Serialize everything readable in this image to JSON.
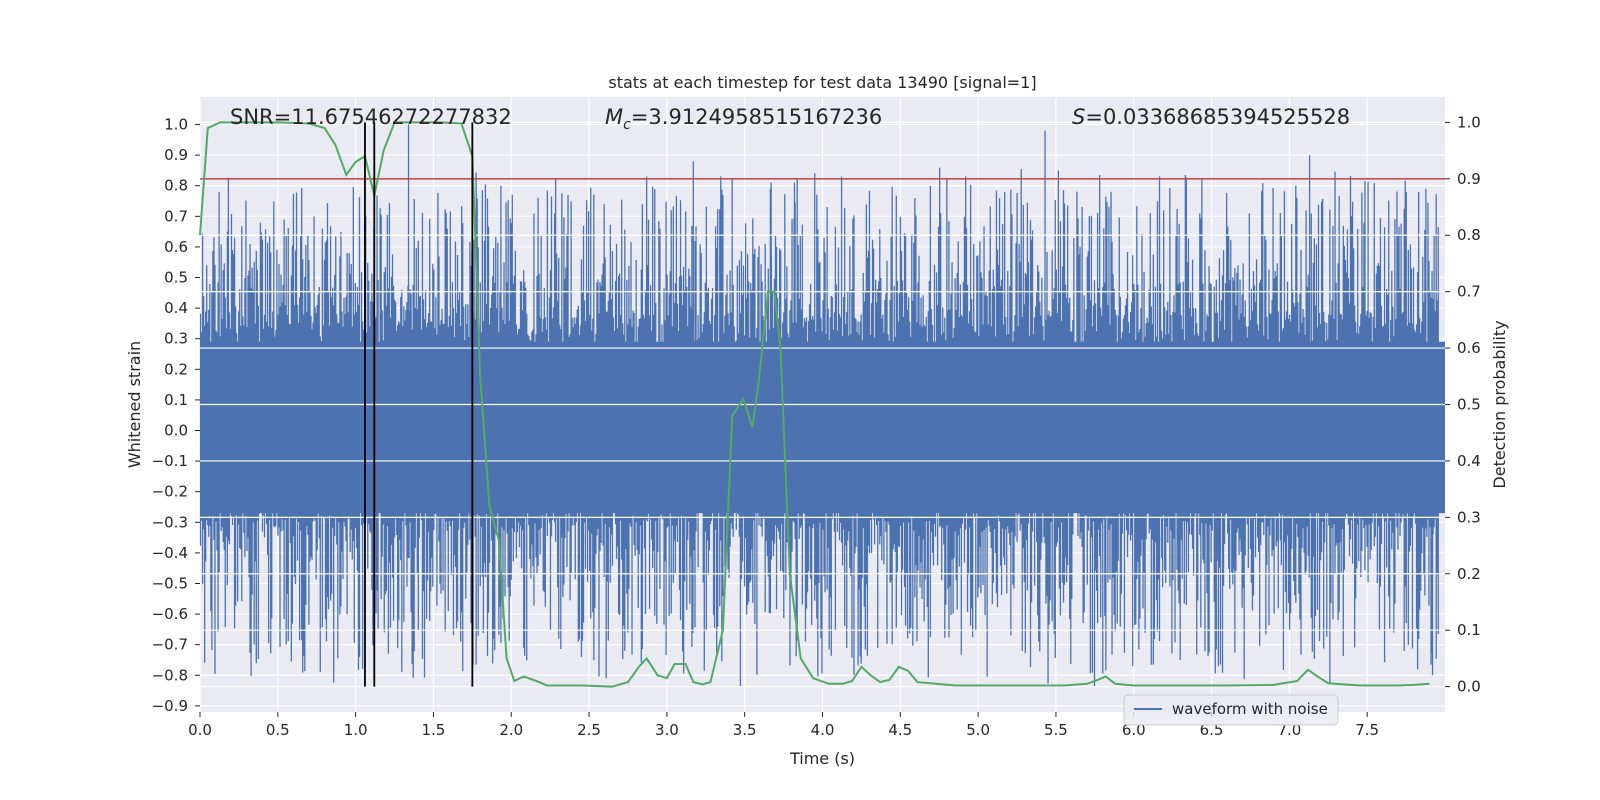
{
  "chart_data": {
    "type": "line",
    "title": "stats at each timestep for test data 13490 [signal=1]",
    "xlabel": "Time (s)",
    "ylabel": "Whitened strain",
    "y2label": "Detection probability",
    "xlim": [
      0.0,
      8.0
    ],
    "ylim": [
      -0.92,
      1.09
    ],
    "y2lim": [
      -0.045,
      1.045
    ],
    "x_ticks": [
      "0.0",
      "0.5",
      "1.0",
      "1.5",
      "2.0",
      "2.5",
      "3.0",
      "3.5",
      "4.0",
      "4.5",
      "5.0",
      "5.5",
      "6.0",
      "6.5",
      "7.0",
      "7.5"
    ],
    "y_ticks": [
      "1.0",
      "0.9",
      "0.8",
      "0.7",
      "0.6",
      "0.5",
      "0.4",
      "0.3",
      "0.2",
      "0.1",
      "0.0",
      "−0.1",
      "−0.2",
      "−0.3",
      "−0.4",
      "−0.5",
      "−0.6",
      "−0.7",
      "−0.8",
      "−0.9"
    ],
    "y2_ticks": [
      "1.0",
      "0.9",
      "0.8",
      "0.7",
      "0.6",
      "0.5",
      "0.4",
      "0.3",
      "0.2",
      "0.1",
      "0.0"
    ],
    "grid": true,
    "legend": {
      "position": "lower-right",
      "entries": [
        "waveform with noise"
      ]
    },
    "annotations": {
      "snr": "SNR=11.67546272277832",
      "mc_symbol": "M",
      "mc_sub": "c",
      "mc_value": "=3.9124958515167236",
      "s_symbol": "S",
      "s_value": "=0.03368685394525528"
    },
    "threshold": {
      "value": 0.9,
      "axis": "y2",
      "color": "#c44e52"
    },
    "vertical_markers": [
      1.06,
      1.12,
      1.75
    ],
    "noise_band": {
      "median_low": -0.32,
      "median_high": 0.39,
      "peak_high": 0.88,
      "peak_low": -0.85,
      "n_samples": 1200
    },
    "spikes": [
      {
        "x": 1.34,
        "y": 1.0
      },
      {
        "x": 2.87,
        "y": 0.83
      },
      {
        "x": 3.17,
        "y": 0.88
      },
      {
        "x": 3.67,
        "y": 0.81
      },
      {
        "x": 3.82,
        "y": 0.81
      },
      {
        "x": 4.92,
        "y": 0.83
      },
      {
        "x": 5.43,
        "y": 0.98
      },
      {
        "x": 7.13,
        "y": 0.9
      },
      {
        "x": 2.61,
        "y": -0.81
      },
      {
        "x": 7.92,
        "y": -0.8
      }
    ],
    "series": [
      {
        "name": "Detection probability",
        "axis": "y2",
        "color": "#55a868",
        "points": [
          [
            0.0,
            0.8
          ],
          [
            0.05,
            0.99
          ],
          [
            0.13,
            1.0
          ],
          [
            0.3,
            1.0
          ],
          [
            0.5,
            1.0
          ],
          [
            0.7,
            0.998
          ],
          [
            0.8,
            0.99
          ],
          [
            0.87,
            0.96
          ],
          [
            0.94,
            0.907
          ],
          [
            1.0,
            0.93
          ],
          [
            1.06,
            0.94
          ],
          [
            1.12,
            0.87
          ],
          [
            1.18,
            0.95
          ],
          [
            1.25,
            1.0
          ],
          [
            1.4,
            1.0
          ],
          [
            1.55,
            1.0
          ],
          [
            1.68,
            0.998
          ],
          [
            1.75,
            0.94
          ],
          [
            1.8,
            0.55
          ],
          [
            1.86,
            0.32
          ],
          [
            1.92,
            0.26
          ],
          [
            1.97,
            0.05
          ],
          [
            2.02,
            0.01
          ],
          [
            2.08,
            0.018
          ],
          [
            2.16,
            0.01
          ],
          [
            2.23,
            0.002
          ],
          [
            2.35,
            0.002
          ],
          [
            2.45,
            0.002
          ],
          [
            2.65,
            0.0
          ],
          [
            2.75,
            0.008
          ],
          [
            2.82,
            0.035
          ],
          [
            2.87,
            0.05
          ],
          [
            2.94,
            0.02
          ],
          [
            3.0,
            0.015
          ],
          [
            3.05,
            0.04
          ],
          [
            3.12,
            0.04
          ],
          [
            3.17,
            0.008
          ],
          [
            3.23,
            0.004
          ],
          [
            3.28,
            0.008
          ],
          [
            3.36,
            0.1
          ],
          [
            3.42,
            0.48
          ],
          [
            3.49,
            0.51
          ],
          [
            3.55,
            0.46
          ],
          [
            3.59,
            0.54
          ],
          [
            3.65,
            0.7
          ],
          [
            3.69,
            0.7
          ],
          [
            3.73,
            0.6
          ],
          [
            3.79,
            0.2
          ],
          [
            3.86,
            0.05
          ],
          [
            3.94,
            0.015
          ],
          [
            4.04,
            0.005
          ],
          [
            4.13,
            0.005
          ],
          [
            4.19,
            0.01
          ],
          [
            4.25,
            0.035
          ],
          [
            4.31,
            0.02
          ],
          [
            4.37,
            0.008
          ],
          [
            4.43,
            0.012
          ],
          [
            4.49,
            0.035
          ],
          [
            4.55,
            0.028
          ],
          [
            4.61,
            0.008
          ],
          [
            4.73,
            0.005
          ],
          [
            4.85,
            0.002
          ],
          [
            5.0,
            0.002
          ],
          [
            5.3,
            0.002
          ],
          [
            5.55,
            0.002
          ],
          [
            5.7,
            0.005
          ],
          [
            5.77,
            0.012
          ],
          [
            5.82,
            0.018
          ],
          [
            5.88,
            0.005
          ],
          [
            6.0,
            0.002
          ],
          [
            6.3,
            0.002
          ],
          [
            6.6,
            0.002
          ],
          [
            6.9,
            0.003
          ],
          [
            7.05,
            0.01
          ],
          [
            7.12,
            0.03
          ],
          [
            7.18,
            0.018
          ],
          [
            7.25,
            0.006
          ],
          [
            7.45,
            0.002
          ],
          [
            7.7,
            0.002
          ],
          [
            7.8,
            0.003
          ],
          [
            7.9,
            0.005
          ]
        ]
      }
    ]
  },
  "colors": {
    "plot_bg": "#eaeaf2",
    "grid": "#ffffff",
    "waveform": "#4c72b0",
    "probability": "#55a868",
    "threshold": "#c44e52",
    "marker": "#000000"
  }
}
